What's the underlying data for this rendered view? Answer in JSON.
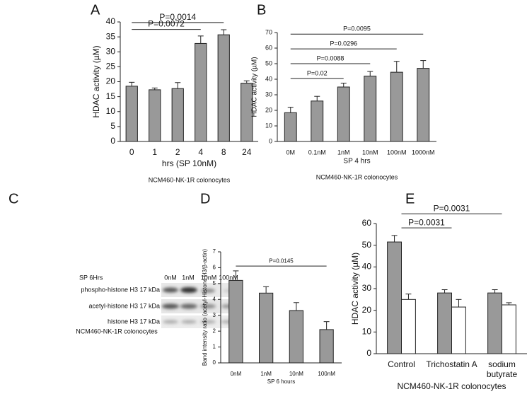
{
  "chart_data": [
    {
      "type": "bar",
      "panel": "A",
      "ylabel": "HDAC activity (µM)",
      "xlabel": "hrs (SP 10nM)",
      "subtitle": "NCM460-NK-1R colonocytes",
      "categories": [
        "0",
        "1",
        "2",
        "4",
        "8",
        "24"
      ],
      "values": [
        18.5,
        17.3,
        17.7,
        32.8,
        35.7,
        19.5
      ],
      "errors": [
        1.3,
        0.6,
        2.0,
        2.5,
        1.7,
        0.8
      ],
      "color": "#999999",
      "ylim": [
        0,
        40
      ],
      "yticks": [
        0,
        5,
        10,
        15,
        20,
        25,
        30,
        35,
        40
      ],
      "comparisons": [
        {
          "label": "P=0.0072",
          "from": "0",
          "to": "4",
          "y": 37.5
        },
        {
          "label": "P=0.0014",
          "from": "0",
          "to": "8",
          "y": 39.8
        }
      ]
    },
    {
      "type": "bar",
      "panel": "B",
      "ylabel": "HDAC activity (µM)",
      "xlabel": "SP 4 hrs",
      "subtitle": "NCM460-NK-1R colonocytes",
      "categories": [
        "0M",
        "0.1nM",
        "1nM",
        "10nM",
        "100nM",
        "1000nM"
      ],
      "values": [
        18.5,
        26,
        35,
        42,
        44.5,
        47
      ],
      "errors": [
        3.5,
        3,
        2.5,
        3,
        7,
        5
      ],
      "color": "#999999",
      "ylim": [
        0,
        70
      ],
      "yticks": [
        0,
        10,
        20,
        30,
        40,
        50,
        60,
        70
      ],
      "comparisons": [
        {
          "label": "P=0.02",
          "from": "0M",
          "to": "1nM",
          "y": 40.5
        },
        {
          "label": "P=0.0088",
          "from": "0M",
          "to": "10nM",
          "y": 50
        },
        {
          "label": "P=0.0296",
          "from": "0M",
          "to": "100nM",
          "y": 59.5
        },
        {
          "label": "P=0.0095",
          "from": "0M",
          "to": "1000nM",
          "y": 69
        }
      ]
    },
    {
      "type": "bar",
      "panel": "D",
      "ylabel": "Band intensity ratio (acetyl-Histone H3/β-actin)",
      "xlabel": "SP 6 hours",
      "categories": [
        "0nM",
        "1nM",
        "10nM",
        "100nM"
      ],
      "values": [
        5.2,
        4.4,
        3.3,
        2.1
      ],
      "errors": [
        0.6,
        0.4,
        0.5,
        0.5
      ],
      "color": "#999999",
      "ylim": [
        0,
        7
      ],
      "yticks": [
        0,
        1,
        2,
        3,
        4,
        5,
        6,
        7
      ],
      "comparisons": [
        {
          "label": "P=0.0145",
          "from": "0nM",
          "to": "100nM",
          "y": 6.1
        }
      ]
    },
    {
      "type": "bar",
      "panel": "E",
      "ylabel": "HDAC activity (µM)",
      "xlabel": "NCM460-NK-1R colonocytes",
      "categories": [
        "Control",
        "Trichostatin A",
        "sodium butyrate"
      ],
      "series": [
        {
          "color": "#999999",
          "values": [
            51.5,
            28,
            28
          ],
          "errors": [
            3,
            1.5,
            1.5
          ]
        },
        {
          "color": "#ffffff",
          "values": [
            25,
            21.5,
            22.5
          ],
          "errors": [
            2.5,
            3.5,
            1
          ]
        }
      ],
      "ylim": [
        0,
        60
      ],
      "yticks": [
        0,
        10,
        20,
        30,
        40,
        50,
        60
      ],
      "comparisons": [
        {
          "label": "P=0.0031",
          "from": "Control",
          "to": "Trichostatin A",
          "y": 58
        },
        {
          "label": "P=0.0031",
          "from": "Control",
          "to": "sodium butyrate",
          "y": 64.5
        }
      ]
    }
  ],
  "blot": {
    "panel": "C",
    "treatment": "SP  6Hrs",
    "lanes": [
      "0nM",
      "1nM",
      "10nM",
      "100nM"
    ],
    "rows": [
      "phospho-histone H3 17 kDa",
      "acetyl-histone H3 17 kDa",
      "histone H3 17 kDa"
    ],
    "caption": "NCM460-NK-1R colonocytes"
  }
}
